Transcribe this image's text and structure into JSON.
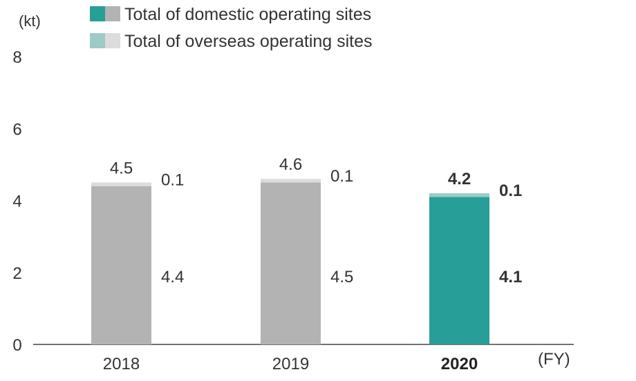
{
  "chart_data": {
    "type": "bar",
    "stacked": true,
    "y_unit": "(kt)",
    "x_unit": "(FY)",
    "ylim": [
      0,
      8
    ],
    "yticks": [
      0,
      2,
      4,
      6,
      8
    ],
    "categories": [
      "2018",
      "2019",
      "2020"
    ],
    "highlight_category": "2020",
    "series": [
      {
        "name": "Total of domestic operating sites",
        "values": [
          4.4,
          4.5,
          4.1
        ]
      },
      {
        "name": "Total of overseas operating sites",
        "values": [
          0.1,
          0.1,
          0.1
        ]
      }
    ],
    "totals": [
      4.5,
      4.6,
      4.2
    ],
    "colors": {
      "domestic": "#b3b3b3",
      "overseas": "#dcdcdc",
      "domestic_highlight": "#279e98",
      "overseas_highlight": "#9ccbc7",
      "axis": "#444444"
    },
    "legend": {
      "position": "top-left",
      "items": [
        {
          "label": "Total of domestic operating sites",
          "swatches": [
            "#279e98",
            "#b3b3b3"
          ]
        },
        {
          "label": "Total of overseas operating sites",
          "swatches": [
            "#9ccbc7",
            "#dcdcdc"
          ]
        }
      ]
    },
    "grid": false
  }
}
